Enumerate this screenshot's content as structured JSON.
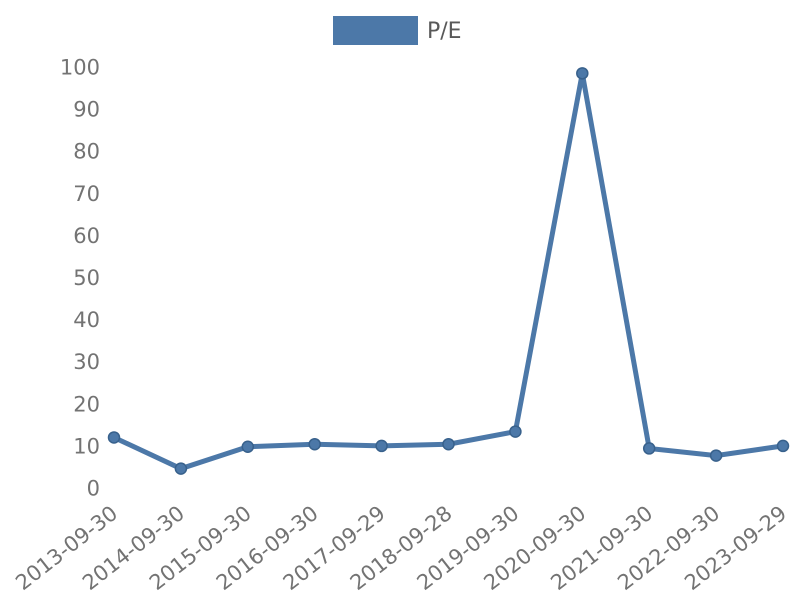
{
  "legend": {
    "label": "P/E",
    "swatch_color": "#4C78A8"
  },
  "chart_data": {
    "type": "line",
    "title": "",
    "xlabel": "",
    "ylabel": "",
    "categories": [
      "2013-09-30",
      "2014-09-30",
      "2015-09-30",
      "2016-09-30",
      "2017-09-29",
      "2018-09-28",
      "2019-09-30",
      "2020-09-30",
      "2021-09-30",
      "2022-09-30",
      "2023-09-29"
    ],
    "series": [
      {
        "name": "P/E",
        "color": "#4C78A8",
        "marker_edge_color": "#38618C",
        "marker": "circle",
        "values": [
          12,
          4.6,
          9.8,
          10.4,
          10,
          10.4,
          13.4,
          98.5,
          9.4,
          7.7,
          10
        ]
      }
    ],
    "ylim": [
      0,
      100
    ],
    "yticks": [
      0,
      10,
      20,
      30,
      40,
      50,
      60,
      70,
      80,
      90,
      100
    ],
    "grid": false,
    "axis_lines": false,
    "legend_position": "top-center",
    "x_tick_rotation_deg": -38,
    "tick_label_color": "#737373",
    "legend_text_color": "#595959"
  }
}
